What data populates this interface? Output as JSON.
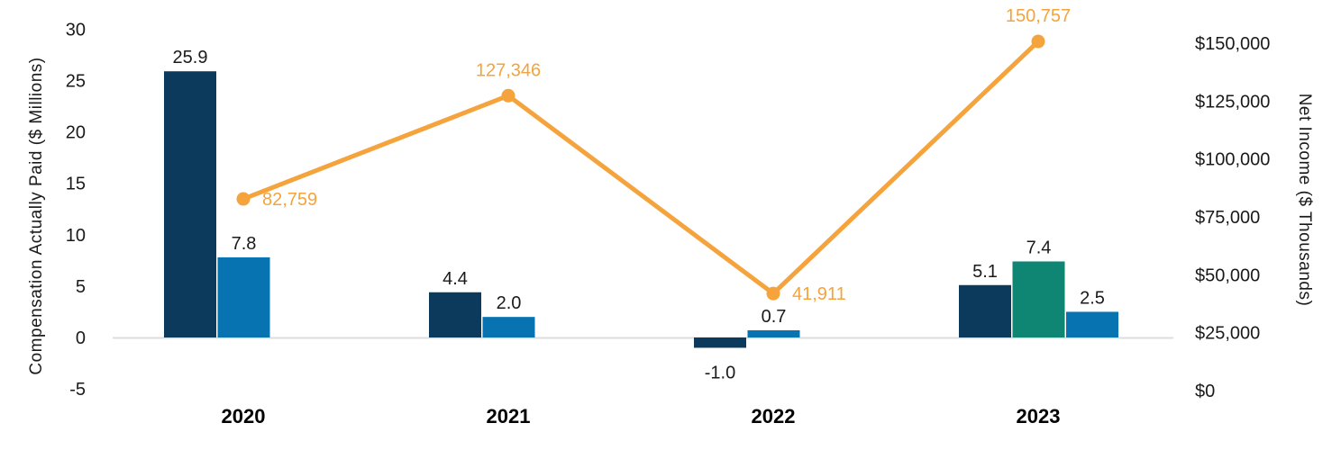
{
  "chart_data": {
    "type": "combo-grouped-bar-and-line-dual-axis",
    "title": "",
    "legend": "none",
    "grid": "zero baseline only",
    "categories": [
      "2020",
      "2021",
      "2022",
      "2023"
    ],
    "bar_series": [
      {
        "name": "cap-bar-navy",
        "color": "#0C3A5D",
        "slots": [
          0,
          0,
          0,
          0
        ],
        "values": [
          25.9,
          4.4,
          -1.0,
          5.1
        ],
        "labels": [
          "25.9",
          "4.4",
          "-1.0",
          "5.1"
        ]
      },
      {
        "name": "cap-bar-teal",
        "color": "#0F8573",
        "slots": [
          null,
          null,
          null,
          1
        ],
        "values": [
          null,
          null,
          null,
          7.4
        ],
        "labels": [
          null,
          null,
          null,
          "7.4"
        ]
      },
      {
        "name": "cap-bar-blue",
        "color": "#0873B1",
        "slots": [
          1,
          1,
          1,
          2
        ],
        "values": [
          7.8,
          2.0,
          0.7,
          2.5
        ],
        "labels": [
          "7.8",
          "2.0",
          "0.7",
          "2.5"
        ]
      }
    ],
    "line_series": {
      "name": "net-income-line",
      "color": "#F5A33C",
      "values": [
        82759,
        127346,
        41911,
        150757
      ],
      "labels": [
        "82,759",
        "127,346",
        "41,911",
        "150,757"
      ],
      "label_placement": [
        "right",
        "above",
        "right",
        "above"
      ]
    },
    "left_axis": {
      "title": "Compensation Actually Paid ($ Millions)",
      "range": [
        -5,
        30
      ],
      "tick_values": [
        30,
        25,
        20,
        15,
        10,
        5,
        0,
        -5
      ],
      "tick_labels": [
        "30",
        "25",
        "20",
        "15",
        "10",
        "5",
        "0",
        "-5"
      ]
    },
    "right_axis": {
      "title": "Net Income ($ Thousands)",
      "range": [
        0,
        150000
      ],
      "tick_values": [
        150000,
        125000,
        100000,
        75000,
        50000,
        25000,
        0
      ],
      "tick_labels": [
        "$150,000",
        "$125,000",
        "$100,000",
        "$75,000",
        "$50,000",
        "$25,000",
        "$0"
      ]
    },
    "styles": {
      "background": "#FFFFFF",
      "baseline_color": "#DDDDDD",
      "label_color": "#1A1A1A",
      "category_label_color": "#000000"
    }
  }
}
